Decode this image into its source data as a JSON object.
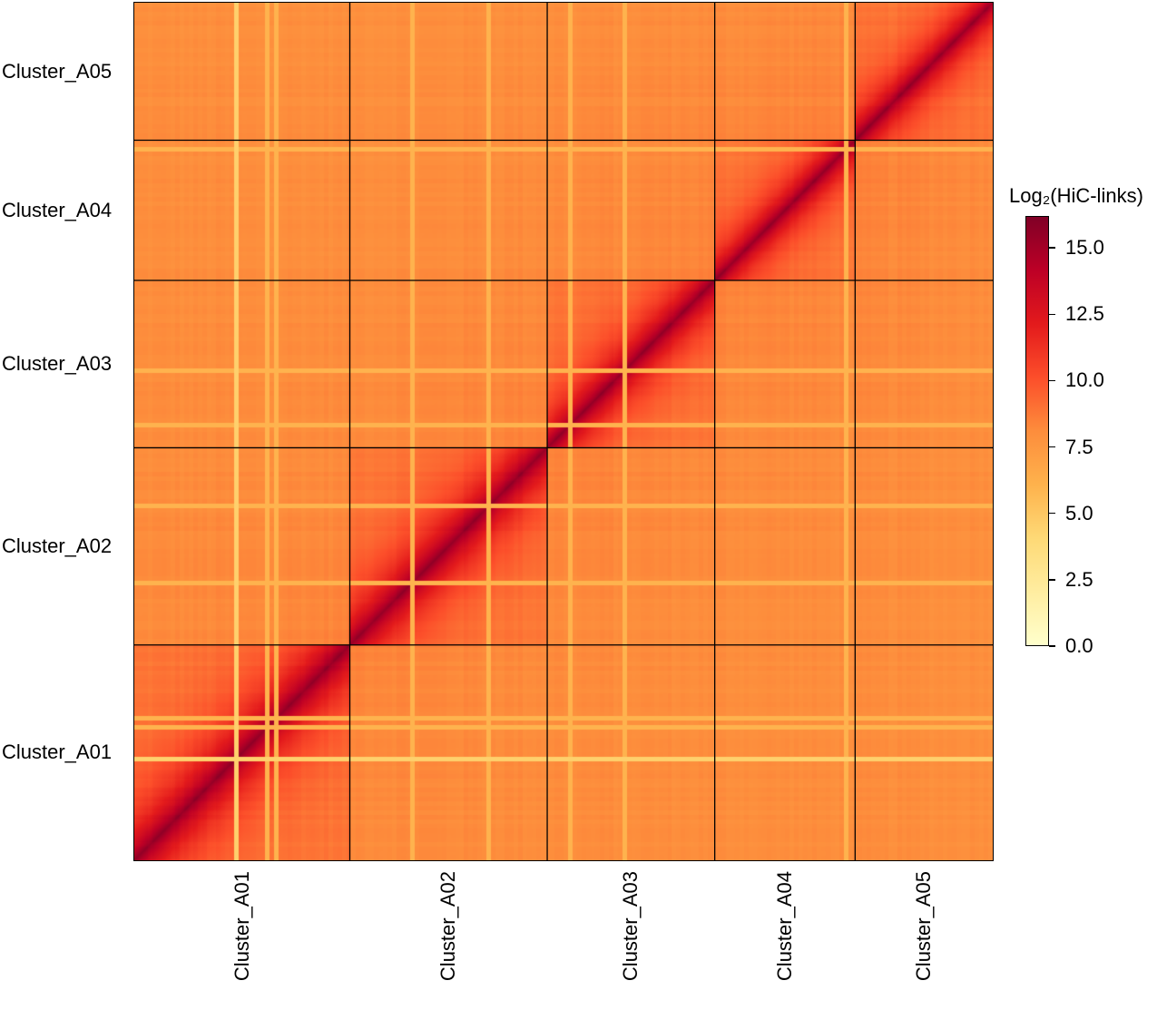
{
  "chart_data": {
    "type": "heatmap",
    "title": "",
    "colorbar": {
      "label": "Log₂(HiC-links)",
      "range": [
        0.0,
        16.2
      ],
      "ticks": [
        0.0,
        2.5,
        5.0,
        7.5,
        10.0,
        12.5,
        15.0
      ],
      "tick_labels": [
        "0.0",
        "2.5",
        "5.0",
        "7.5",
        "10.0",
        "12.5",
        "15.0"
      ],
      "colormap": [
        "#ffffcc",
        "#ffeda0",
        "#fed976",
        "#feb24c",
        "#fd8d3c",
        "#fc4e2a",
        "#e31a1c",
        "#bd0026",
        "#800026"
      ]
    },
    "clusters": [
      {
        "name": "Cluster_A01",
        "relative_length": 238
      },
      {
        "name": "Cluster_A02",
        "relative_length": 218
      },
      {
        "name": "Cluster_A03",
        "relative_length": 185
      },
      {
        "name": "Cluster_A04",
        "relative_length": 155
      },
      {
        "name": "Cluster_A05",
        "relative_length": 152
      }
    ],
    "values": {
      "diagonal": 15.5,
      "intra_cluster_near": 11.5,
      "intra_cluster_background": 8.8,
      "inter_cluster_background": 8.0,
      "gap_stripes": 4.5
    },
    "y_axis_order": "Cluster_A01 at bottom, Cluster_A05 at top",
    "x_axis_order": "Cluster_A01 at left, Cluster_A05 at right",
    "grid": false
  }
}
